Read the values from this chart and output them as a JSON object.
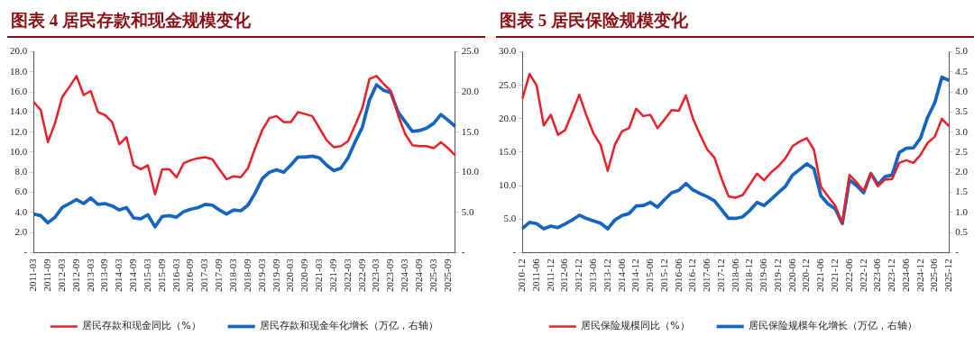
{
  "chart_data": [
    {
      "type": "line",
      "title": "图表 4   居民存款和现金规模变化",
      "categories": [
        "2011-03",
        null,
        "2011-09",
        null,
        "2012-03",
        null,
        "2012-09",
        null,
        "2013-03",
        null,
        "2013-09",
        null,
        "2014-03",
        null,
        "2014-09",
        null,
        "2015-03",
        null,
        "2015-09",
        null,
        "2016-03",
        null,
        "2016-09",
        null,
        "2017-03",
        null,
        "2017-09",
        null,
        "2018-03",
        null,
        "2018-09",
        null,
        "2019-03",
        null,
        "2019-09",
        null,
        "2020-03",
        null,
        "2020-09",
        null,
        "2021-03",
        null,
        "2021-09",
        null,
        "2022-03",
        null,
        "2022-09",
        null,
        "2023-03",
        null,
        "2023-09",
        null,
        "2024-03",
        null,
        "2024-09",
        null,
        "2025-03",
        null,
        "2025-09",
        null
      ],
      "series": [
        {
          "name": "居民存款和现金同比（%）",
          "color": "#e8202a",
          "values": [
            15.0,
            14.2,
            11.0,
            12.9,
            15.5,
            16.5,
            17.6,
            15.7,
            16.1,
            14.0,
            13.7,
            13.0,
            10.8,
            11.5,
            8.7,
            8.3,
            8.7,
            5.8,
            8.3,
            8.3,
            7.5,
            8.9,
            9.2,
            9.4,
            9.5,
            9.3,
            8.3,
            7.3,
            7.6,
            7.5,
            8.4,
            10.4,
            12.2,
            13.4,
            13.6,
            13.0,
            13.0,
            14.0,
            13.8,
            13.6,
            12.4,
            11.2,
            10.5,
            10.6,
            11.1,
            12.7,
            14.4,
            17.3,
            17.6,
            16.8,
            16.1,
            13.7,
            11.8,
            10.7,
            10.6,
            10.6,
            10.4,
            11.0,
            10.4,
            9.7
          ]
        },
        {
          "name": "居民存款和现金年化增长（万亿，右轴）",
          "color": "#1565c0",
          "axis": "y2",
          "values": [
            4.8,
            4.6,
            3.7,
            4.4,
            5.6,
            6.1,
            6.6,
            6.1,
            6.8,
            6.0,
            6.1,
            5.8,
            5.3,
            5.6,
            4.3,
            4.2,
            4.7,
            3.2,
            4.5,
            4.6,
            4.4,
            5.1,
            5.4,
            5.6,
            6.0,
            5.9,
            5.3,
            4.8,
            5.3,
            5.2,
            5.9,
            7.4,
            9.2,
            10.0,
            10.3,
            10.0,
            10.9,
            11.9,
            11.9,
            12.0,
            11.8,
            10.9,
            10.2,
            10.5,
            11.8,
            13.8,
            15.6,
            19.0,
            20.9,
            20.2,
            19.9,
            17.5,
            16.3,
            15.1,
            15.2,
            15.5,
            16.1,
            17.2,
            16.5,
            15.7
          ]
        }
      ],
      "ylim": [
        0,
        20
      ],
      "yticks": [
        {
          "value": 0,
          "label": "-"
        },
        {
          "value": 2,
          "label": "2.0"
        },
        {
          "value": 4,
          "label": "4.0"
        },
        {
          "value": 6,
          "label": "6.0"
        },
        {
          "value": 8,
          "label": "8.0"
        },
        {
          "value": 10,
          "label": "10.0"
        },
        {
          "value": 12,
          "label": "12.0"
        },
        {
          "value": 14,
          "label": "14.0"
        },
        {
          "value": 16,
          "label": "16.0"
        },
        {
          "value": 18,
          "label": "18.0"
        },
        {
          "value": 20,
          "label": "20.0"
        }
      ],
      "y2lim": [
        0,
        25
      ],
      "y2ticks": [
        {
          "value": 0,
          "label": "-"
        },
        {
          "value": 5,
          "label": "5.0"
        },
        {
          "value": 10,
          "label": "10.0"
        },
        {
          "value": 15,
          "label": "15.0"
        },
        {
          "value": 20,
          "label": "20.0"
        },
        {
          "value": 25,
          "label": "25.0"
        }
      ],
      "legend": "bottom",
      "grid": false
    },
    {
      "type": "line",
      "title": "图表 5   居民保险规模变化",
      "categories": [
        "2010-12",
        null,
        "2011-06",
        null,
        "2011-12",
        null,
        "2012-06",
        null,
        "2012-12",
        null,
        "2013-06",
        null,
        "2013-12",
        null,
        "2014-06",
        null,
        "2014-12",
        null,
        "2015-06",
        null,
        "2015-12",
        null,
        "2016-06",
        null,
        "2016-12",
        null,
        "2017-06",
        null,
        "2017-12",
        null,
        "2018-06",
        null,
        "2018-12",
        null,
        "2019-06",
        null,
        "2019-12",
        null,
        "2020-06",
        null,
        "2020-12",
        null,
        "2021-06",
        null,
        "2021-12",
        null,
        "2022-06",
        null,
        "2022-12",
        null,
        "2023-06",
        null,
        "2023-12",
        null,
        "2024-06",
        null,
        "2024-12",
        null,
        "2025-06",
        null,
        "2025-12"
      ],
      "series": [
        {
          "name": "居民保险规模同比（%）",
          "color": "#e8202a",
          "values": [
            23.0,
            26.7,
            25.0,
            19.0,
            20.6,
            17.6,
            18.3,
            20.9,
            23.6,
            20.5,
            17.8,
            16.1,
            12.2,
            16.1,
            18.1,
            18.6,
            21.5,
            20.4,
            20.6,
            18.6,
            19.9,
            21.3,
            21.2,
            23.5,
            20.0,
            17.6,
            15.4,
            14.2,
            11.1,
            8.4,
            8.2,
            8.6,
            10.2,
            11.8,
            10.8,
            12.0,
            12.9,
            14.1,
            15.9,
            16.6,
            17.1,
            15.4,
            9.8,
            8.4,
            7.0,
            4.4,
            11.6,
            10.5,
            9.2,
            11.8,
            9.9,
            10.9,
            11.0,
            13.4,
            13.8,
            13.4,
            14.6,
            16.4,
            17.3,
            20.0,
            18.9
          ]
        },
        {
          "name": "居民保险规模年化增长（万亿，右轴）",
          "color": "#1565c0",
          "axis": "y2",
          "values": [
            0.6,
            0.75,
            0.72,
            0.59,
            0.66,
            0.62,
            0.71,
            0.81,
            0.93,
            0.85,
            0.79,
            0.73,
            0.59,
            0.81,
            0.92,
            0.97,
            1.16,
            1.17,
            1.25,
            1.13,
            1.32,
            1.49,
            1.55,
            1.72,
            1.56,
            1.47,
            1.39,
            1.29,
            1.07,
            0.85,
            0.85,
            0.89,
            1.05,
            1.25,
            1.17,
            1.33,
            1.49,
            1.65,
            1.93,
            2.07,
            2.21,
            2.09,
            1.41,
            1.21,
            1.09,
            0.72,
            1.81,
            1.67,
            1.49,
            1.97,
            1.69,
            1.89,
            1.93,
            2.49,
            2.6,
            2.61,
            2.85,
            3.37,
            3.73,
            4.37,
            4.29
          ]
        }
      ],
      "ylim": [
        0,
        30
      ],
      "yticks": [
        {
          "value": 0,
          "label": "-"
        },
        {
          "value": 5,
          "label": "5.0"
        },
        {
          "value": 10,
          "label": "10.0"
        },
        {
          "value": 15,
          "label": "15.0"
        },
        {
          "value": 20,
          "label": "20.0"
        },
        {
          "value": 25,
          "label": "25.0"
        },
        {
          "value": 30,
          "label": "30.0"
        }
      ],
      "y2lim": [
        0,
        5
      ],
      "y2ticks": [
        {
          "value": 0,
          "label": "-"
        },
        {
          "value": 0.5,
          "label": "0.5"
        },
        {
          "value": 1,
          "label": "1.0"
        },
        {
          "value": 1.5,
          "label": "1.5"
        },
        {
          "value": 2,
          "label": "2.0"
        },
        {
          "value": 2.5,
          "label": "2.5"
        },
        {
          "value": 3,
          "label": "3.0"
        },
        {
          "value": 3.5,
          "label": "3.5"
        },
        {
          "value": 4,
          "label": "4.0"
        },
        {
          "value": 4.5,
          "label": "4.5"
        },
        {
          "value": 5,
          "label": "5.0"
        }
      ],
      "legend": "bottom",
      "grid": false
    }
  ]
}
